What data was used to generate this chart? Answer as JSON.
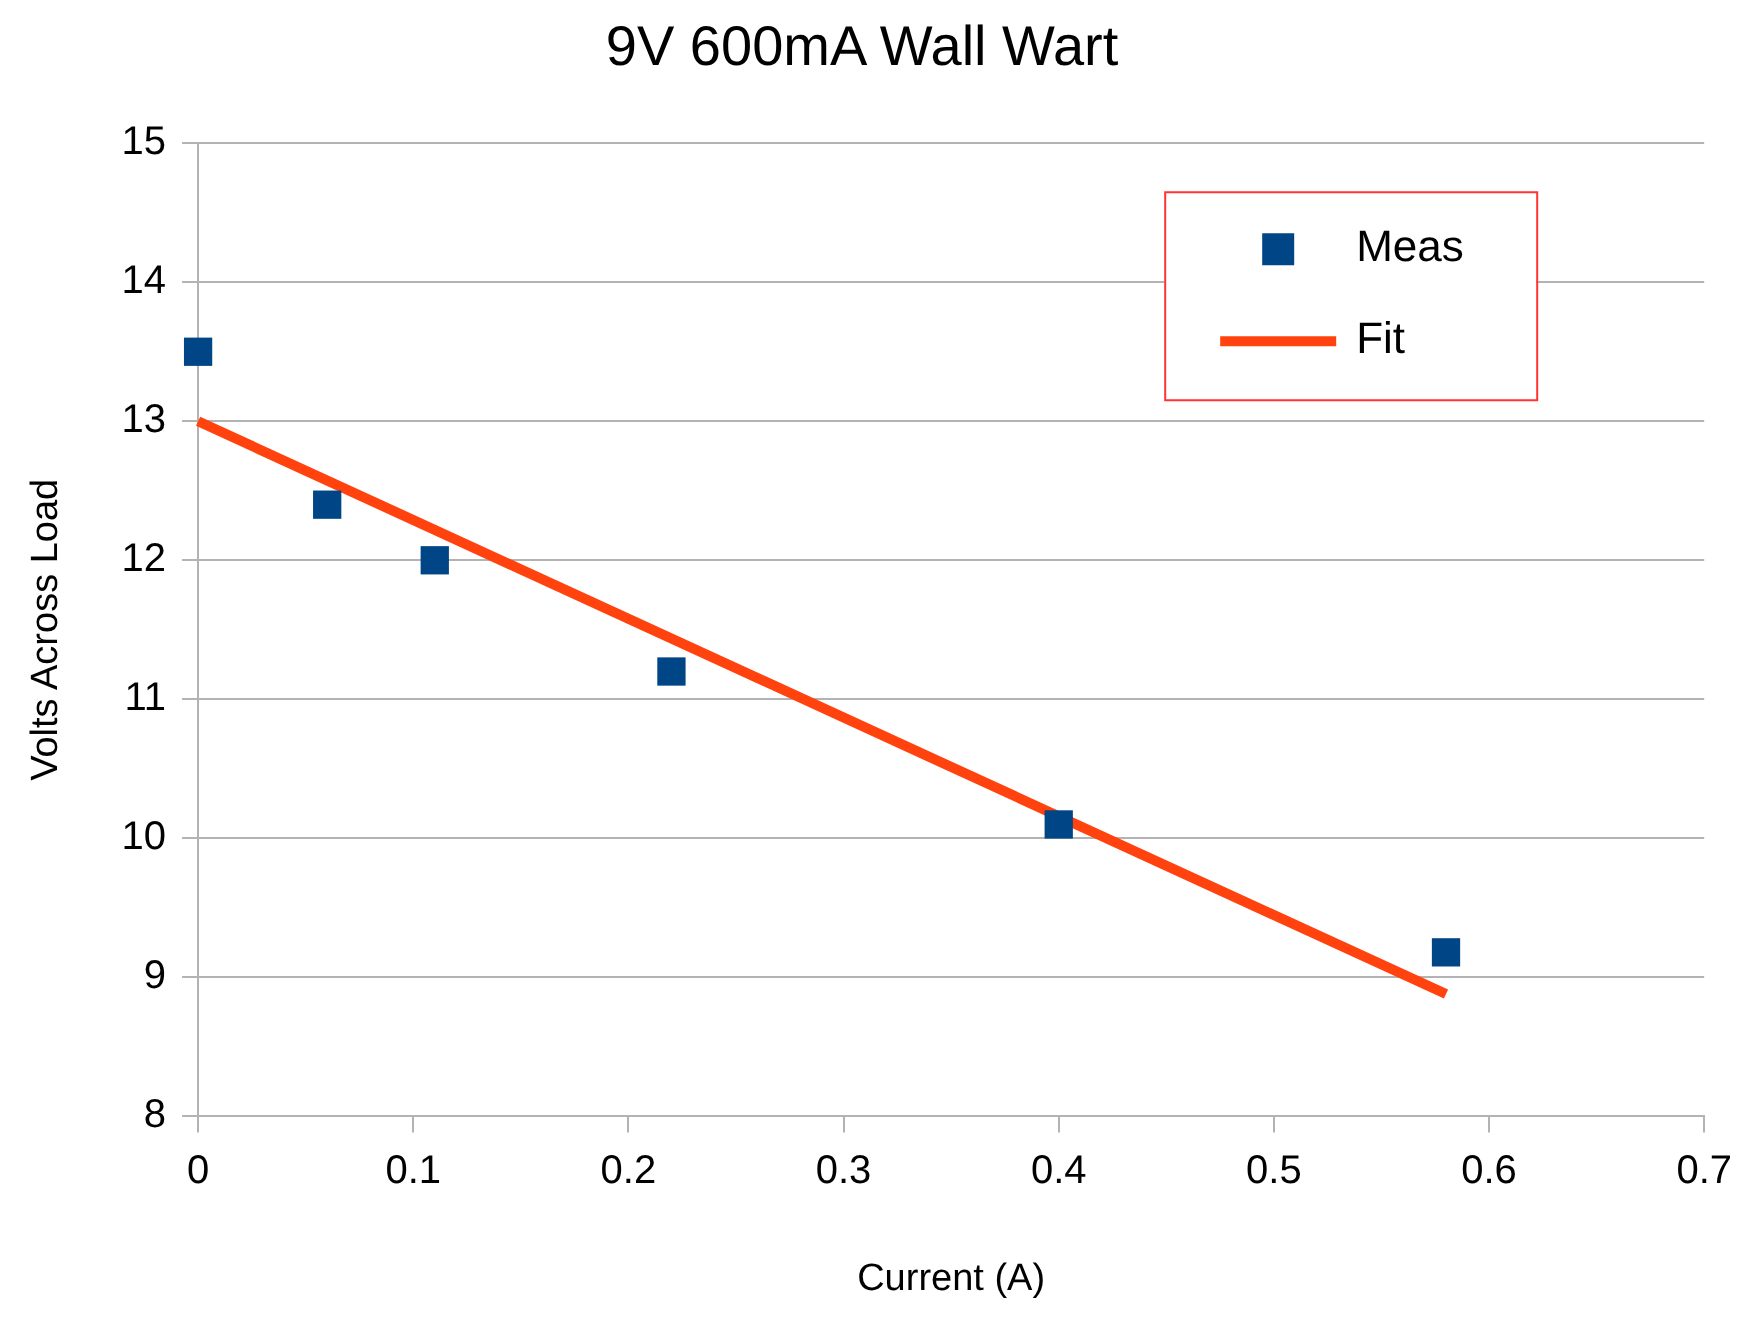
{
  "chart_data": {
    "type": "scatter",
    "title": "9V 600mA Wall Wart",
    "xlabel": "Current (A)",
    "ylabel": "Volts Across Load",
    "xlim": [
      0,
      0.7
    ],
    "xticks": [
      0,
      0.1,
      0.2,
      0.3,
      0.4,
      0.5,
      0.6,
      0.7
    ],
    "ylim": [
      8,
      15
    ],
    "yticks": [
      8,
      9,
      10,
      11,
      12,
      13,
      14,
      15
    ],
    "grid": "y",
    "legend": "top right",
    "series": [
      {
        "name": "Meas",
        "marker": "square",
        "color": "#004586",
        "x": [
          0,
          0.06,
          0.11,
          0.22,
          0.4,
          0.58
        ],
        "values": [
          13.5,
          12.4,
          12.0,
          11.2,
          10.1,
          9.18
        ]
      },
      {
        "name": "Fit",
        "type": "line",
        "color": "#ff420e",
        "x": [
          0,
          0.58
        ],
        "values": [
          13.0,
          8.88
        ]
      }
    ]
  }
}
